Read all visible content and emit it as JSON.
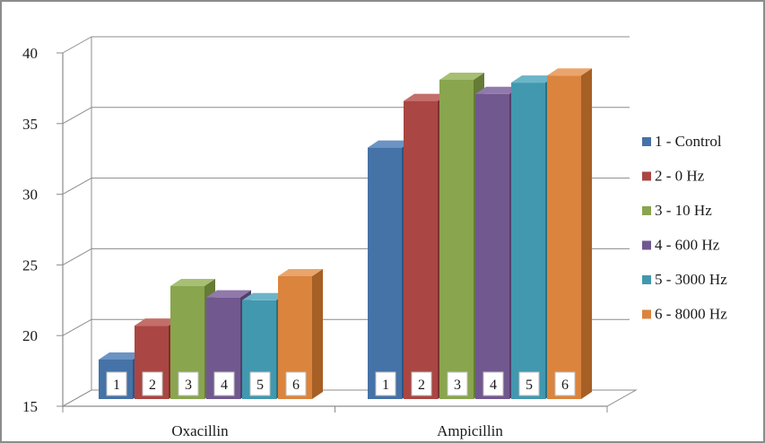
{
  "chart_data": {
    "type": "bar",
    "categories": [
      "Oxacillin",
      "Ampicillin"
    ],
    "series": [
      {
        "name": "1 - Control",
        "label": "1",
        "values": [
          18.3,
          33.3
        ],
        "color": "#4572a7",
        "side": "#2e5484",
        "top": "#6b93c4"
      },
      {
        "name": "2 - 0 Hz",
        "label": "2",
        "values": [
          20.7,
          36.6
        ],
        "color": "#aa4643",
        "side": "#7e302e",
        "top": "#c46e6b"
      },
      {
        "name": "3 - 10 Hz",
        "label": "3",
        "values": [
          23.5,
          38.1
        ],
        "color": "#89a54e",
        "side": "#657b36",
        "top": "#a7bf73"
      },
      {
        "name": "4 - 600 Hz",
        "label": "4",
        "values": [
          22.7,
          37.1
        ],
        "color": "#71588f",
        "side": "#523f6b",
        "top": "#9079ab"
      },
      {
        "name": "5 - 3000 Hz",
        "label": "5",
        "values": [
          22.5,
          37.9
        ],
        "color": "#4198af",
        "side": "#2b7183",
        "top": "#6cb4c7"
      },
      {
        "name": "6 - 8000 Hz",
        "label": "6",
        "values": [
          24.2,
          38.4
        ],
        "color": "#db843d",
        "side": "#a65f24",
        "top": "#eaa56c"
      }
    ],
    "y_ticks": [
      "15",
      "20",
      "25",
      "30",
      "35",
      "40"
    ],
    "ylim": [
      15,
      40
    ],
    "title": "",
    "xlabel": "",
    "ylabel": "",
    "grid": true,
    "legend_position": "right"
  }
}
